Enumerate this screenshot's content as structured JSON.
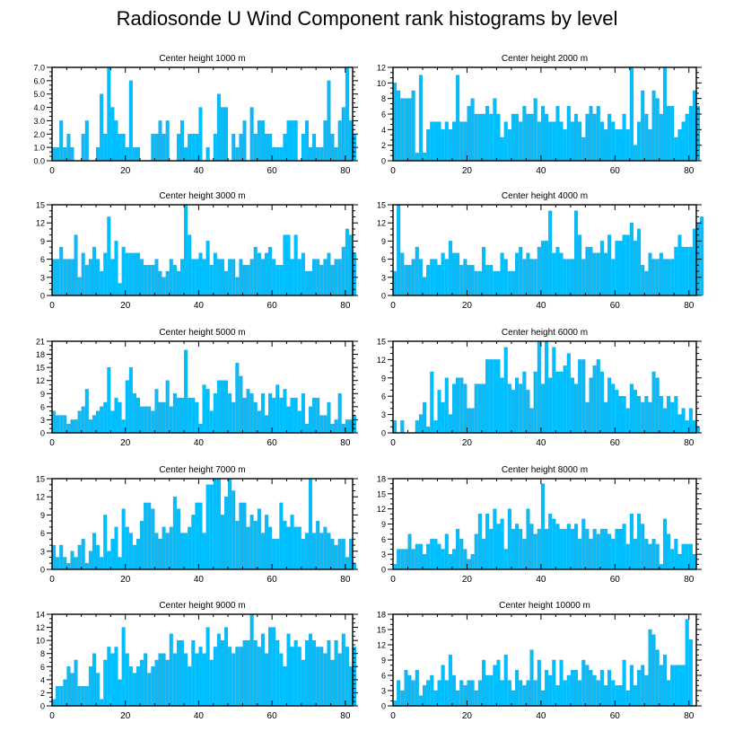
{
  "title": "Radiosonde U Wind Component rank histograms by level",
  "colors": {
    "bar": "#00bfff",
    "bar_stroke": "#1a9fd6",
    "axis": "#000000"
  },
  "chart_data": [
    {
      "type": "bar",
      "title": "Center height 1000 m",
      "xlim": [
        0,
        82
      ],
      "ylim": [
        0,
        7
      ],
      "x_ticks": [
        0,
        20,
        40,
        60,
        80
      ],
      "y_ticks": [
        "0.0",
        "1.0",
        "2.0",
        "3.0",
        "4.0",
        "5.0",
        "6.0",
        "7.0"
      ],
      "y_tick_values": [
        0,
        1,
        2,
        3,
        4,
        5,
        6,
        7
      ],
      "values": [
        1,
        1,
        3,
        1,
        2,
        1,
        0,
        0,
        2,
        3,
        0,
        0,
        1,
        5,
        2,
        7,
        4,
        3,
        2,
        2,
        1,
        6,
        1,
        1,
        0,
        0,
        0,
        2,
        2,
        3,
        2,
        3,
        0,
        0,
        2,
        3,
        1,
        2,
        2,
        2,
        4,
        0,
        1,
        0,
        2,
        5,
        4,
        4,
        0,
        2,
        1,
        2,
        3,
        0,
        4,
        2,
        3,
        3,
        2,
        2,
        1,
        1,
        1,
        2,
        3,
        3,
        3,
        0,
        2,
        3,
        1,
        2,
        1,
        1,
        3,
        6,
        2,
        1,
        3,
        4,
        7,
        3,
        2
      ]
    },
    {
      "type": "bar",
      "title": "Center height 2000 m",
      "xlim": [
        0,
        82
      ],
      "ylim": [
        0,
        12
      ],
      "x_ticks": [
        0,
        20,
        40,
        60,
        80
      ],
      "y_ticks": [
        "0",
        "2",
        "4",
        "6",
        "8",
        "10",
        "12"
      ],
      "y_tick_values": [
        0,
        2,
        4,
        6,
        8,
        10,
        12
      ],
      "values": [
        10,
        9,
        8,
        8,
        8,
        9,
        1,
        11,
        1,
        4,
        5,
        5,
        5,
        4,
        5,
        4,
        5,
        11,
        5,
        5,
        7,
        8,
        6,
        6,
        6,
        7,
        6,
        8,
        6,
        3,
        5,
        4,
        6,
        6,
        5,
        7,
        6,
        6,
        8,
        5,
        7,
        6,
        5,
        5,
        7,
        5,
        4,
        7,
        5,
        6,
        5,
        3,
        6,
        7,
        6,
        7,
        5,
        4,
        6,
        5,
        4,
        4,
        6,
        4,
        12,
        2,
        5,
        9,
        6,
        4,
        9,
        8,
        6,
        12,
        7,
        7,
        3,
        4,
        5,
        6,
        7,
        9,
        7
      ]
    },
    {
      "type": "bar",
      "title": "Center height 3000 m",
      "xlim": [
        0,
        82
      ],
      "ylim": [
        0,
        15
      ],
      "x_ticks": [
        0,
        20,
        40,
        60,
        80
      ],
      "y_ticks": [
        "0",
        "3",
        "6",
        "9",
        "12",
        "15"
      ],
      "y_tick_values": [
        0,
        3,
        6,
        9,
        12,
        15
      ],
      "values": [
        6,
        6,
        8,
        6,
        6,
        6,
        10,
        3,
        7,
        5,
        6,
        8,
        6,
        4,
        7,
        13,
        6,
        9,
        2,
        8,
        7,
        7,
        7,
        7,
        6,
        5,
        5,
        5,
        6,
        4,
        3,
        4,
        6,
        5,
        4,
        6,
        15,
        10,
        6,
        6,
        7,
        6,
        9,
        5,
        7,
        6,
        6,
        4,
        6,
        6,
        3,
        6,
        5,
        5,
        6,
        8,
        7,
        6,
        7,
        8,
        6,
        5,
        5,
        10,
        10,
        6,
        10,
        6,
        7,
        4,
        4,
        6,
        6,
        5,
        6,
        7,
        5,
        6,
        6,
        8,
        11,
        10,
        7
      ]
    },
    {
      "type": "bar",
      "title": "Center height 4000 m",
      "xlim": [
        0,
        82
      ],
      "ylim": [
        0,
        15
      ],
      "x_ticks": [
        0,
        20,
        40,
        60,
        80
      ],
      "y_ticks": [
        "0",
        "3",
        "6",
        "9",
        "12",
        "15"
      ],
      "y_tick_values": [
        0,
        3,
        6,
        9,
        12,
        15
      ],
      "values": [
        4,
        15,
        7,
        5,
        5,
        6,
        8,
        6,
        3,
        5,
        6,
        6,
        5,
        7,
        6,
        9,
        7,
        7,
        5,
        6,
        5,
        5,
        4,
        4,
        8,
        5,
        5,
        4,
        4,
        7,
        6,
        4,
        4,
        7,
        8,
        6,
        7,
        6,
        6,
        8,
        9,
        9,
        14,
        7,
        8,
        7,
        6,
        6,
        6,
        14,
        10,
        6,
        8,
        8,
        7,
        7,
        9,
        7,
        10,
        6,
        9,
        9,
        10,
        10,
        12,
        9,
        11,
        5,
        4,
        7,
        6,
        6,
        7,
        6,
        6,
        6,
        8,
        10,
        8,
        8,
        8,
        11,
        12,
        13
      ]
    },
    {
      "type": "bar",
      "title": "Center height 5000 m",
      "xlim": [
        0,
        82
      ],
      "ylim": [
        0,
        21
      ],
      "x_ticks": [
        0,
        20,
        40,
        60,
        80
      ],
      "y_ticks": [
        "0",
        "3",
        "6",
        "9",
        "12",
        "15",
        "18",
        "21"
      ],
      "y_tick_values": [
        0,
        3,
        6,
        9,
        12,
        15,
        18,
        21
      ],
      "values": [
        5,
        4,
        4,
        4,
        2,
        3,
        3,
        5,
        6,
        10,
        3,
        4,
        5,
        6,
        7,
        15,
        5,
        8,
        7,
        3,
        12,
        15,
        9,
        8,
        6,
        6,
        6,
        5,
        10,
        7,
        7,
        12,
        6,
        9,
        8,
        8,
        19,
        8,
        8,
        7,
        2,
        11,
        10,
        5,
        9,
        12,
        12,
        12,
        9,
        7,
        16,
        13,
        8,
        10,
        9,
        7,
        5,
        9,
        4,
        9,
        8,
        11,
        8,
        10,
        6,
        8,
        8,
        5,
        9,
        2,
        6,
        8,
        8,
        4,
        4,
        7,
        2,
        3,
        9,
        2,
        3,
        3,
        4
      ]
    },
    {
      "type": "bar",
      "title": "Center height 6000 m",
      "xlim": [
        0,
        82
      ],
      "ylim": [
        0,
        15
      ],
      "x_ticks": [
        0,
        20,
        40,
        60,
        80
      ],
      "y_ticks": [
        "0",
        "3",
        "6",
        "9",
        "12",
        "15"
      ],
      "y_tick_values": [
        0,
        3,
        6,
        9,
        12,
        15
      ],
      "values": [
        2,
        0,
        2,
        0,
        0,
        0,
        2,
        3,
        5,
        1,
        10,
        2,
        7,
        5,
        9,
        3,
        8,
        9,
        9,
        8,
        4,
        4,
        8,
        8,
        8,
        12,
        12,
        12,
        12,
        9,
        14,
        8,
        7,
        9,
        8,
        10,
        7,
        4,
        10,
        15,
        8,
        15,
        9,
        14,
        10,
        10,
        11,
        13,
        9,
        8,
        12,
        12,
        5,
        9,
        11,
        12,
        10,
        5,
        9,
        8,
        7,
        6,
        6,
        4,
        8,
        7,
        6,
        5,
        6,
        5,
        10,
        9,
        6,
        4,
        6,
        5,
        6,
        3,
        4,
        2,
        4,
        2,
        1
      ]
    },
    {
      "type": "bar",
      "title": "Center height 7000 m",
      "xlim": [
        0,
        82
      ],
      "ylim": [
        0,
        15
      ],
      "x_ticks": [
        0,
        20,
        40,
        60,
        80
      ],
      "y_ticks": [
        "0",
        "3",
        "6",
        "9",
        "12",
        "15"
      ],
      "y_tick_values": [
        0,
        3,
        6,
        9,
        12,
        15
      ],
      "values": [
        4,
        2,
        4,
        2,
        1,
        3,
        2,
        4,
        5,
        1,
        3,
        6,
        4,
        2,
        9,
        3,
        5,
        7,
        2,
        10,
        7,
        6,
        4,
        5,
        8,
        11,
        11,
        10,
        6,
        5,
        7,
        6,
        7,
        12,
        10,
        6,
        6,
        7,
        9,
        11,
        11,
        6,
        14,
        14,
        15,
        15,
        9,
        12,
        15,
        13,
        8,
        11,
        11,
        7,
        9,
        8,
        10,
        6,
        9,
        7,
        5,
        5,
        11,
        8,
        7,
        9,
        7,
        7,
        5,
        6,
        15,
        6,
        8,
        6,
        7,
        6,
        5,
        4,
        5,
        5,
        2,
        5,
        1
      ]
    },
    {
      "type": "bar",
      "title": "Center height 8000 m",
      "xlim": [
        0,
        82
      ],
      "ylim": [
        0,
        18
      ],
      "x_ticks": [
        0,
        20,
        40,
        60,
        80
      ],
      "y_ticks": [
        "0",
        "3",
        "6",
        "9",
        "12",
        "15",
        "18"
      ],
      "y_tick_values": [
        0,
        3,
        6,
        9,
        12,
        15,
        18
      ],
      "values": [
        1,
        4,
        4,
        4,
        7,
        4,
        5,
        5,
        3,
        5,
        6,
        6,
        5,
        4,
        7,
        3,
        4,
        8,
        6,
        4,
        2,
        3,
        7,
        11,
        6,
        11,
        8,
        12,
        9,
        10,
        4,
        12,
        8,
        9,
        8,
        6,
        12,
        9,
        7,
        8,
        17,
        8,
        11,
        10,
        9,
        8,
        8,
        9,
        8,
        9,
        6,
        10,
        8,
        6,
        8,
        7,
        8,
        8,
        7,
        6,
        8,
        8,
        9,
        5,
        11,
        6,
        11,
        9,
        6,
        5,
        6,
        5,
        1,
        10,
        7,
        4,
        6,
        3,
        5,
        5,
        5,
        3,
        0
      ]
    },
    {
      "type": "bar",
      "title": "Center height 9000 m",
      "xlim": [
        0,
        82
      ],
      "ylim": [
        0,
        14
      ],
      "x_ticks": [
        0,
        20,
        40,
        60,
        80
      ],
      "y_ticks": [
        "0",
        "2",
        "4",
        "6",
        "8",
        "10",
        "12",
        "14"
      ],
      "y_tick_values": [
        0,
        2,
        4,
        6,
        8,
        10,
        12,
        14
      ],
      "values": [
        1,
        3,
        3,
        4,
        6,
        5,
        7,
        3,
        3,
        3,
        6,
        8,
        5,
        1,
        7,
        9,
        8,
        9,
        4,
        12,
        8,
        6,
        5,
        6,
        7,
        8,
        5,
        6,
        7,
        8,
        8,
        7,
        11,
        8,
        10,
        10,
        8,
        6,
        10,
        8,
        9,
        8,
        12,
        7,
        9,
        11,
        10,
        12,
        9,
        8,
        9,
        9,
        10,
        10,
        14,
        10,
        9,
        11,
        8,
        12,
        12,
        10,
        8,
        6,
        11,
        9,
        10,
        9,
        7,
        10,
        11,
        10,
        9,
        9,
        8,
        10,
        7,
        10,
        8,
        11,
        9,
        6,
        9
      ]
    },
    {
      "type": "bar",
      "title": "Center height 10000 m",
      "xlim": [
        0,
        82
      ],
      "ylim": [
        0,
        18
      ],
      "x_ticks": [
        0,
        20,
        40,
        60,
        80
      ],
      "y_ticks": [
        "0",
        "3",
        "6",
        "9",
        "12",
        "15",
        "18"
      ],
      "y_tick_values": [
        0,
        3,
        6,
        9,
        12,
        15,
        18
      ],
      "values": [
        1,
        5,
        3,
        7,
        6,
        5,
        7,
        2,
        4,
        5,
        6,
        3,
        5,
        8,
        5,
        10,
        6,
        3,
        5,
        4,
        5,
        5,
        3,
        5,
        9,
        6,
        6,
        8,
        9,
        5,
        10,
        5,
        3,
        7,
        5,
        4,
        5,
        11,
        5,
        9,
        3,
        7,
        6,
        9,
        4,
        9,
        5,
        6,
        7,
        7,
        5,
        9,
        8,
        7,
        6,
        5,
        7,
        4,
        7,
        5,
        4,
        4,
        9,
        3,
        8,
        4,
        7,
        8,
        6,
        15,
        14,
        11,
        8,
        10,
        5,
        8,
        8,
        8,
        8,
        17,
        13
      ]
    }
  ]
}
